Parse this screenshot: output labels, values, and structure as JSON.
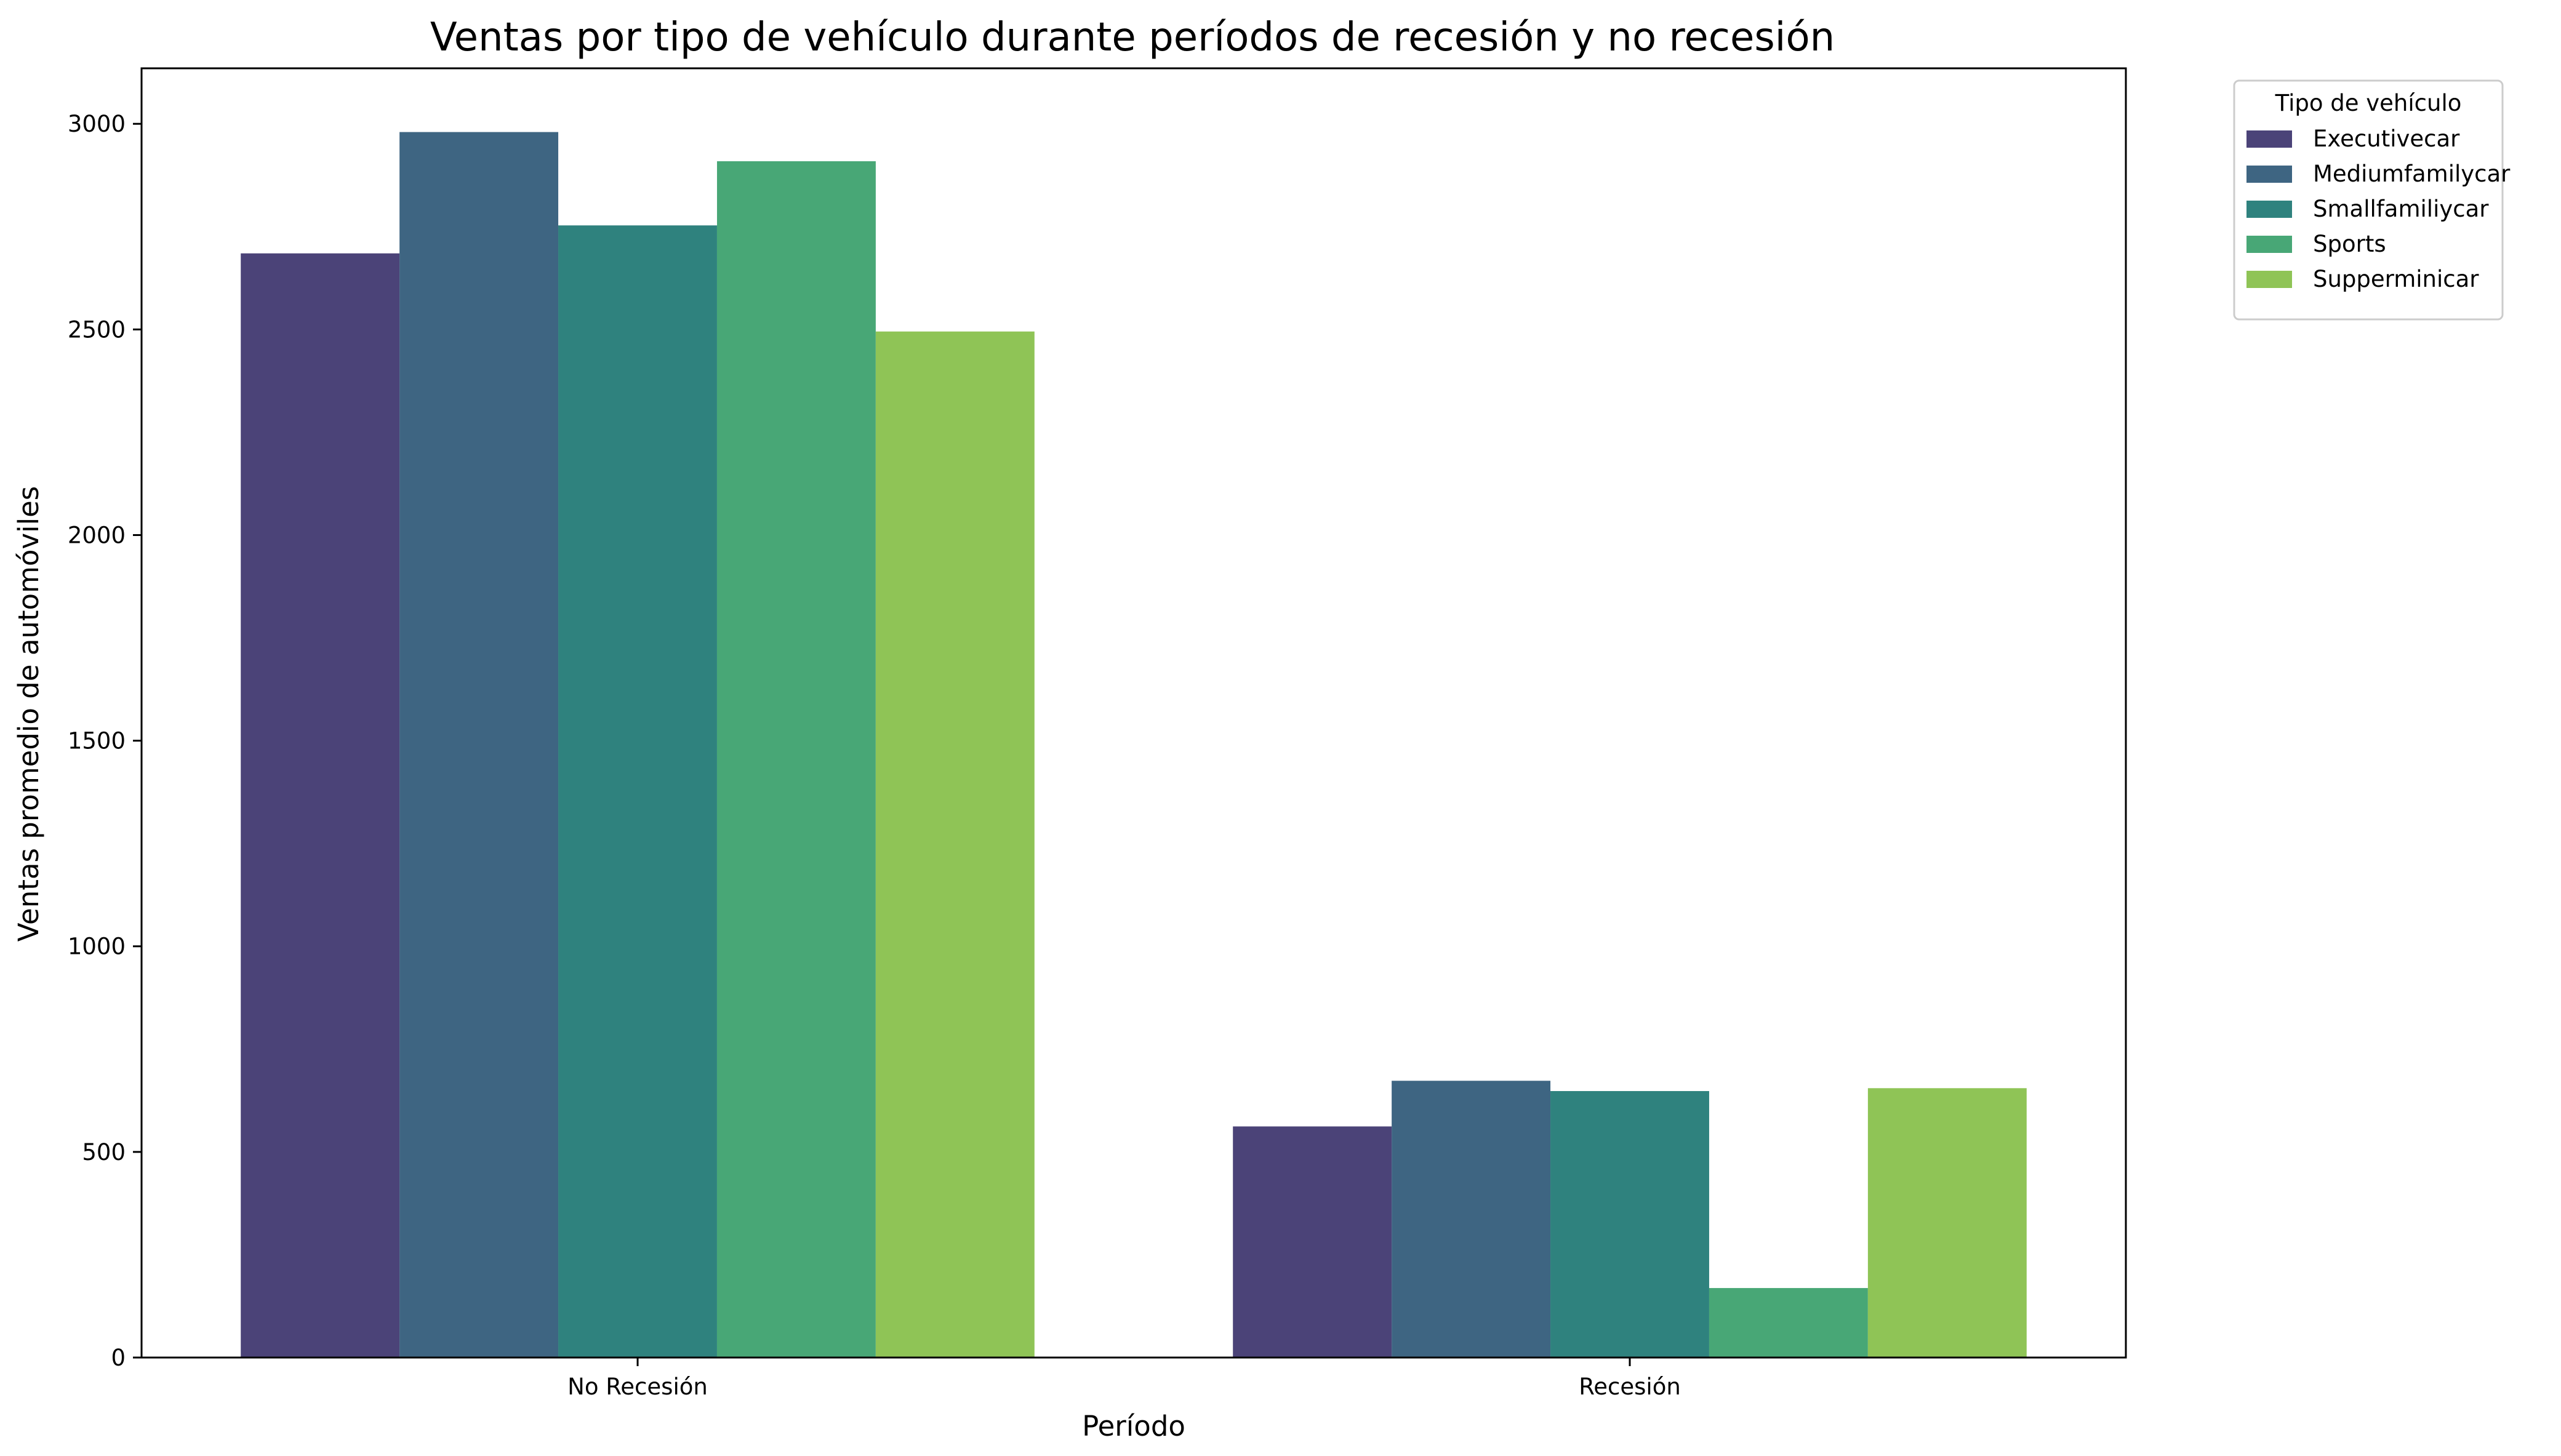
{
  "chart_data": {
    "type": "bar",
    "title": "Ventas por tipo de vehículo durante períodos de recesión y no recesión",
    "xlabel": "Período",
    "ylabel": "Ventas promedio de automóviles",
    "categories": [
      "No Recesión",
      "Recesión"
    ],
    "ylim": [
      0,
      3135
    ],
    "yticks": [
      0,
      500,
      1000,
      1500,
      2000,
      2500,
      3000
    ],
    "grid": false,
    "legend": {
      "title": "Tipo de vehículo",
      "placement": "outside-top-right"
    },
    "series": [
      {
        "name": "Executivecar",
        "color": "#4b4378",
        "values": [
          2685,
          562
        ]
      },
      {
        "name": "Mediumfamilycar",
        "color": "#3e6582",
        "values": [
          2980,
          673
        ]
      },
      {
        "name": "Smallfamiliycar",
        "color": "#2f827e",
        "values": [
          2753,
          648
        ]
      },
      {
        "name": "Sports",
        "color": "#48a776",
        "values": [
          2909,
          169
        ]
      },
      {
        "name": "Supperminicar",
        "color": "#8fc456",
        "values": [
          2495,
          655
        ]
      }
    ]
  }
}
